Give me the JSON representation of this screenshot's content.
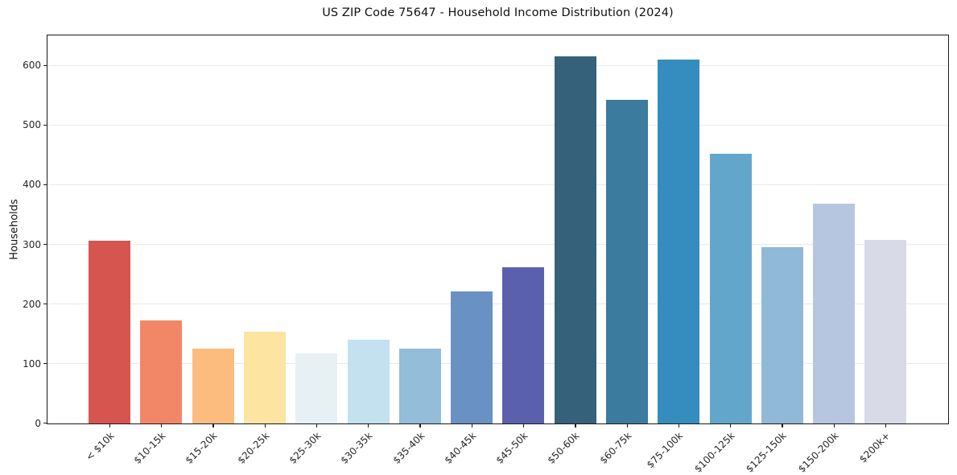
{
  "chart_data": {
    "type": "bar",
    "title": "US ZIP Code 75647 - Household Income Distribution (2024)",
    "xlabel": "",
    "ylabel": "Households",
    "ylim": [
      0,
      650
    ],
    "yticks": [
      0,
      100,
      200,
      300,
      400,
      500,
      600
    ],
    "grid": "horizontal",
    "legend": "none",
    "categories": [
      "< $10k",
      "$10-15k",
      "$15-20k",
      "$20-25k",
      "$25-30k",
      "$30-35k",
      "$35-40k",
      "$40-45k",
      "$45-50k",
      "$50-60k",
      "$60-75k",
      "$75-100k",
      "$100-125k",
      "$125-150k",
      "$150-200k",
      "$200k+"
    ],
    "values": [
      306,
      173,
      126,
      154,
      117,
      140,
      126,
      221,
      262,
      616,
      543,
      610,
      452,
      295,
      368,
      308
    ],
    "bar_colors": [
      "#d6554f",
      "#f28768",
      "#fbbc7d",
      "#fce5a1",
      "#e7f1f4",
      "#c3e1ee",
      "#93bdd9",
      "#6a91c4",
      "#5b60ae",
      "#35617a",
      "#3a7b9e",
      "#348dbe",
      "#63a6cb",
      "#90b8d8",
      "#b7c6e0",
      "#d8dae8"
    ],
    "colors": {
      "background": "#ffffff",
      "spine": "#1a1a1a",
      "grid": "#e9e9f0",
      "tick_label": "#262626",
      "title_text": "#111111"
    }
  }
}
